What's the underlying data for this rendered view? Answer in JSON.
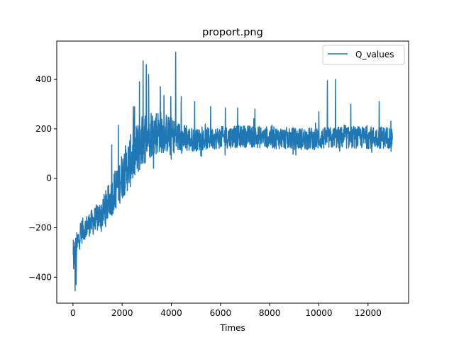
{
  "chart_data": {
    "type": "line",
    "title": "proport.png",
    "xlabel": "Times",
    "ylabel": "",
    "xlim": [
      -660,
      13650
    ],
    "ylim": [
      -505,
      555
    ],
    "xticks": [
      0,
      2000,
      4000,
      6000,
      8000,
      10000,
      12000
    ],
    "yticks": [
      -400,
      -200,
      0,
      200,
      400
    ],
    "xtick_labels": [
      "0",
      "2000",
      "4000",
      "6000",
      "8000",
      "10000",
      "12000"
    ],
    "ytick_labels": [
      "−400",
      "−200",
      "0",
      "200",
      "400"
    ],
    "grid": false,
    "legend": {
      "position": "upper right"
    },
    "series": [
      {
        "name": "Q_values",
        "color": "#1f77b4",
        "x_range": [
          0,
          12990
        ],
        "n_points": 1500,
        "trend": {
          "x": [
            0,
            100,
            300,
            600,
            900,
            1200,
            1500,
            1800,
            2100,
            2400,
            2700,
            3000,
            3500,
            4000,
            4500,
            5000,
            6000,
            7000,
            8000,
            9000,
            10000,
            11000,
            12000,
            12990
          ],
          "y": [
            -330,
            -300,
            -220,
            -190,
            -170,
            -140,
            -90,
            -30,
            30,
            80,
            130,
            180,
            190,
            175,
            160,
            155,
            165,
            170,
            165,
            160,
            160,
            165,
            165,
            165
          ]
        },
        "noise_amplitude": {
          "x": [
            0,
            500,
            1500,
            2000,
            2500,
            3000,
            3500,
            4200,
            5000,
            8000,
            12990
          ],
          "y": [
            45,
            30,
            50,
            65,
            75,
            70,
            60,
            45,
            30,
            30,
            30
          ]
        },
        "spikes": [
          {
            "x": 20,
            "y": -250
          },
          {
            "x": 90,
            "y": -455
          },
          {
            "x": 130,
            "y": -430
          },
          {
            "x": 1580,
            "y": 135
          },
          {
            "x": 1850,
            "y": 215
          },
          {
            "x": 2450,
            "y": 290
          },
          {
            "x": 2700,
            "y": 390
          },
          {
            "x": 2850,
            "y": 475
          },
          {
            "x": 2980,
            "y": 460
          },
          {
            "x": 3080,
            "y": 420
          },
          {
            "x": 3550,
            "y": 370
          },
          {
            "x": 3700,
            "y": 335
          },
          {
            "x": 3980,
            "y": 330
          },
          {
            "x": 4180,
            "y": 510
          },
          {
            "x": 3950,
            "y": 95
          },
          {
            "x": 4400,
            "y": 330
          },
          {
            "x": 4950,
            "y": 310
          },
          {
            "x": 5600,
            "y": 290
          },
          {
            "x": 6200,
            "y": 285
          },
          {
            "x": 6700,
            "y": 285
          },
          {
            "x": 7400,
            "y": 280
          },
          {
            "x": 10000,
            "y": 270
          },
          {
            "x": 10350,
            "y": 395
          },
          {
            "x": 10680,
            "y": 400
          },
          {
            "x": 11300,
            "y": 300
          },
          {
            "x": 12450,
            "y": 310
          },
          {
            "x": 12150,
            "y": 105
          },
          {
            "x": 10850,
            "y": 110
          }
        ]
      }
    ]
  }
}
